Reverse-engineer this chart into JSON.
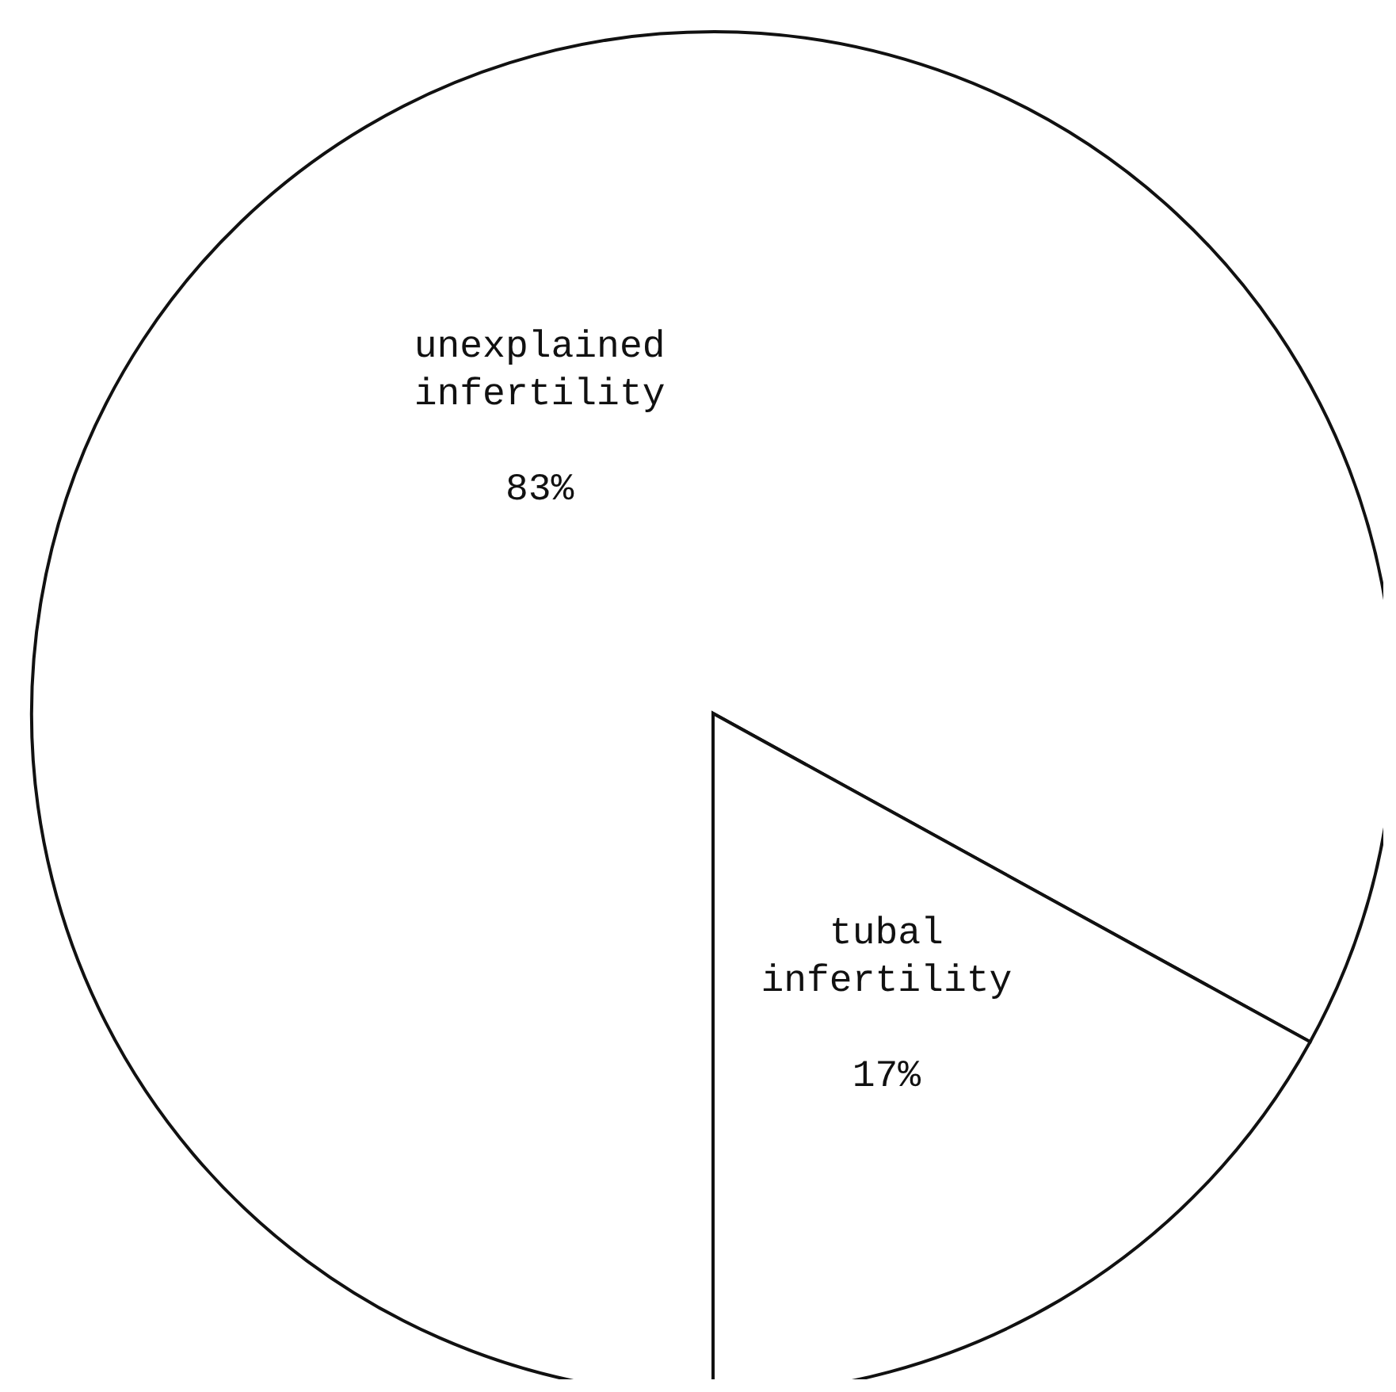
{
  "chart_data": {
    "type": "pie",
    "categories": [
      "unexplained infertility",
      "tubal infertility"
    ],
    "values": [
      83,
      17
    ],
    "value_labels": [
      "83%",
      "17%"
    ],
    "colors": [
      "#ffffff",
      "#ffffff"
    ],
    "legend": false
  }
}
